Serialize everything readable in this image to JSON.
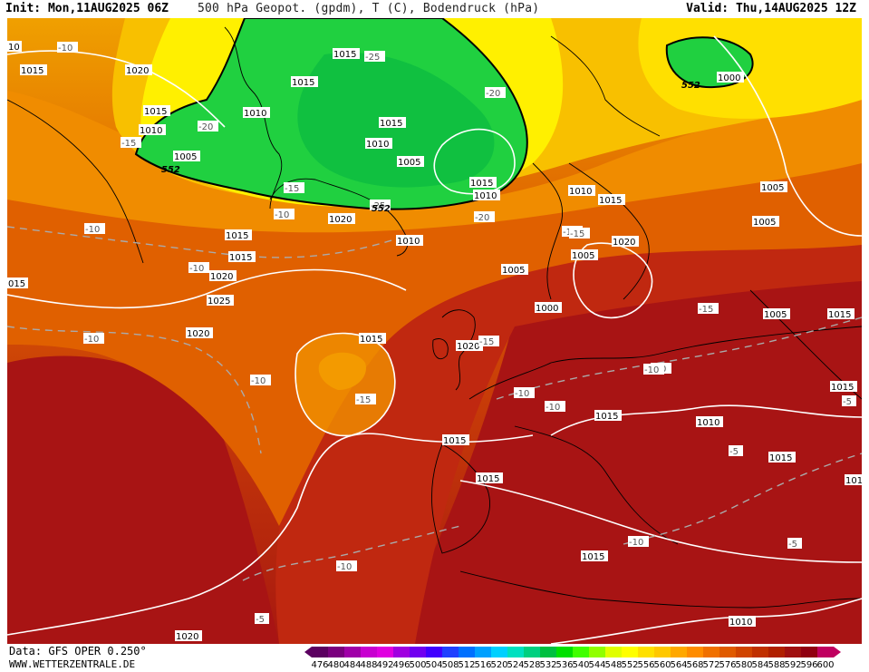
{
  "header": {
    "init": "Init: Mon,11AUG2025 06Z",
    "title": "500 hPa Geopot. (gpdm), T (C), Bodendruck (hPa)",
    "valid": "Valid: Thu,14AUG2025 12Z"
  },
  "footer": {
    "source": "Data: GFS OPER 0.250°",
    "site": "WWW.WETTERZENTRALE.DE"
  },
  "legend": {
    "values": [
      "476",
      "480",
      "484",
      "488",
      "492",
      "496",
      "500",
      "504",
      "508",
      "512",
      "516",
      "520",
      "524",
      "528",
      "532",
      "536",
      "540",
      "544",
      "548",
      "552",
      "556",
      "560",
      "564",
      "568",
      "572",
      "576",
      "580",
      "584",
      "588",
      "592",
      "596",
      "600"
    ],
    "colors": [
      "#5b0060",
      "#7a007e",
      "#a000a8",
      "#c800d0",
      "#e000e0",
      "#a000e0",
      "#7000f0",
      "#4000ff",
      "#2040ff",
      "#0070ff",
      "#00a0ff",
      "#00d0ff",
      "#00e0c0",
      "#00d080",
      "#00c040",
      "#00e000",
      "#40ff00",
      "#90ff00",
      "#e0ff00",
      "#ffff00",
      "#ffe000",
      "#ffc800",
      "#ffa800",
      "#ff8c00",
      "#f07000",
      "#e05a00",
      "#d04400",
      "#c03000",
      "#b02000",
      "#a01010",
      "#900010",
      "#c00060"
    ]
  },
  "map_labels": {
    "isobars": [
      "1015",
      "1020",
      "1015",
      "1010",
      "1005",
      "1015",
      "1010",
      "1015",
      "1015",
      "1010",
      "1005",
      "1010",
      "1015",
      "1010",
      "1005",
      "1015",
      "1020",
      "1000",
      "1005",
      "1010",
      "1015",
      "1020",
      "1015",
      "1020",
      "1025",
      "1020",
      "1015",
      "1015",
      "1020",
      "1015",
      "1015",
      "1010",
      "1005",
      "1005",
      "1015",
      "1010",
      "1015",
      "1015",
      "1015",
      "1010",
      "1020",
      "1010",
      "1000",
      "1005",
      "015",
      "10"
    ],
    "temps": [
      "-10",
      "-15",
      "-20",
      "-25",
      "-15",
      "-20",
      "-10",
      "-25",
      "-20",
      "-10",
      "-15",
      "-10",
      "-10",
      "-10",
      "-15",
      "-15",
      "-10",
      "-10",
      "-15",
      "-10",
      "-5",
      "-10",
      "-5",
      "-10",
      "-5",
      "-5",
      "-10",
      "-15"
    ],
    "geopot_552": [
      "552",
      "552",
      "552"
    ]
  }
}
